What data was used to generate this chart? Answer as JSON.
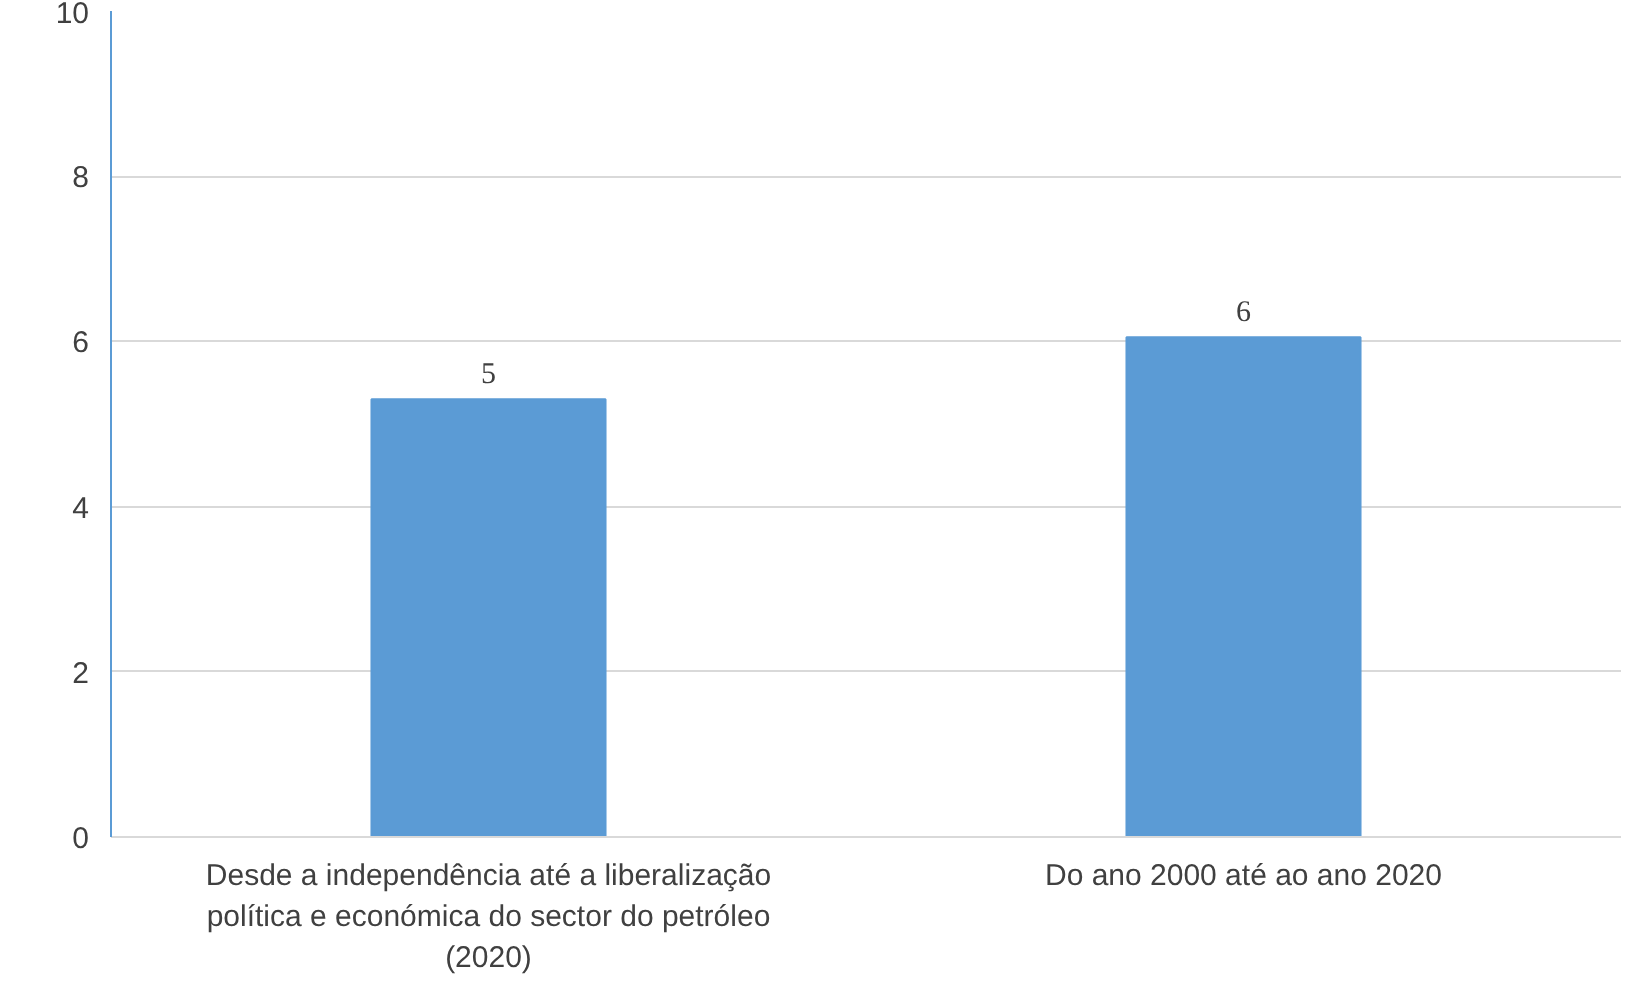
{
  "chart_data": {
    "type": "bar",
    "categories": [
      "Desde a independência até a liberalização política e económica do sector do petróleo (2020)",
      "Do ano 2000 até ao ano 2020"
    ],
    "values": [
      5.3,
      6.05
    ],
    "value_labels": [
      "5",
      "6"
    ],
    "color": "#5b9bd5",
    "ylim": [
      0,
      10
    ],
    "yticks": [
      0,
      2,
      4,
      6,
      8,
      10
    ],
    "grid": "y"
  }
}
